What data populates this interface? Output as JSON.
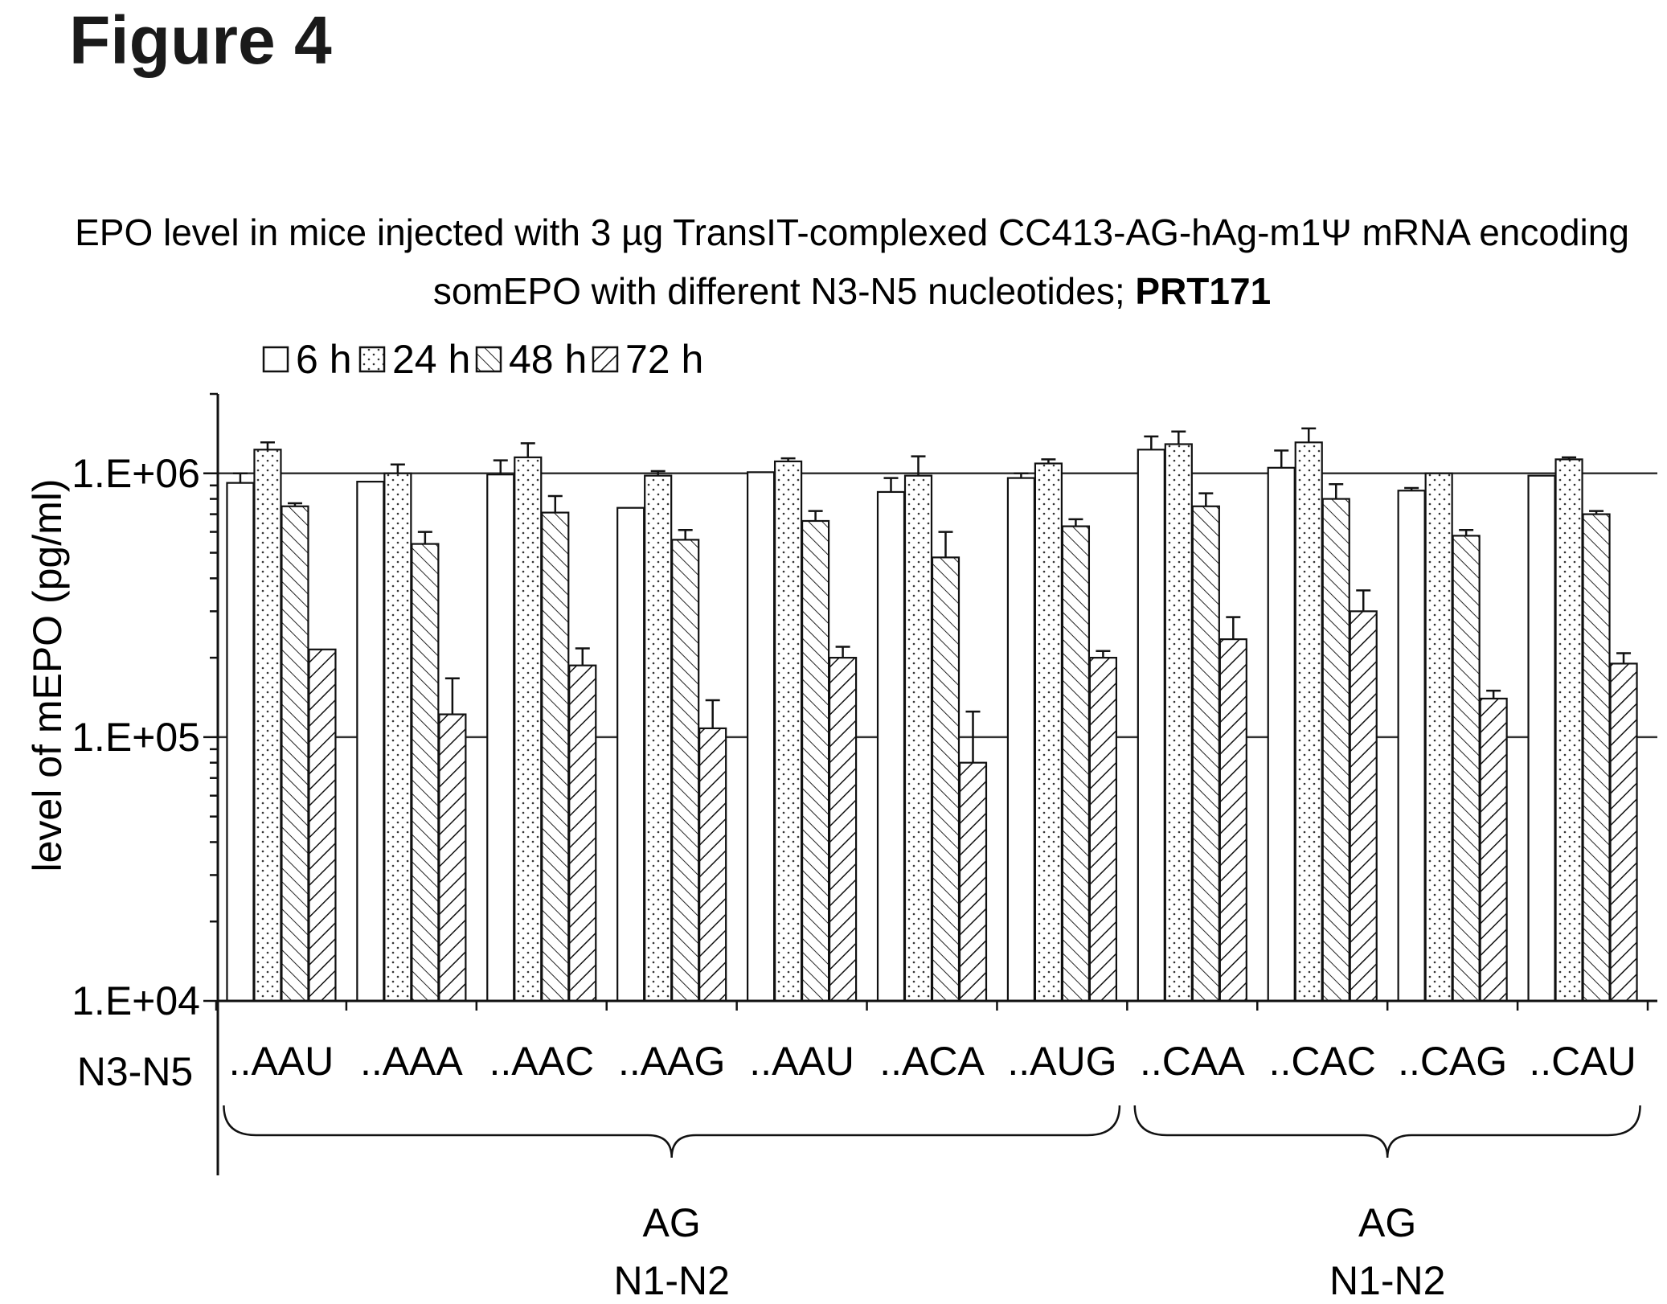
{
  "figure_label": "Figure 4",
  "chart_data": {
    "type": "bar",
    "title_line1": "EPO level in mice injected with 3 µg TransIT-complexed CC413-AG-hAg-m1Ψ mRNA encoding",
    "title_line2_prefix": "somEPO with different N3-N5 nucleotides; ",
    "title_line2_bold": "PRT171",
    "ylabel": "level of mEPO (pg/ml)",
    "row_label": "N3-N5",
    "yscale": "log",
    "ylim": [
      10000,
      2000000
    ],
    "yticks": [
      {
        "value": 10000,
        "label": "1.E+04"
      },
      {
        "value": 100000,
        "label": "1.E+05"
      },
      {
        "value": 1000000,
        "label": "1.E+06"
      }
    ],
    "gridlines": [
      100000,
      1000000
    ],
    "legend_placement": "top-left",
    "categories": [
      "..AAU",
      "..AAA",
      "..AAC",
      "..AAG",
      "..AAU",
      "..ACA",
      "..AUG",
      "..CAA",
      "..CAC",
      "..CAG",
      "..CAU"
    ],
    "series": [
      {
        "name": "6 h",
        "pattern": "open",
        "values": [
          920000,
          930000,
          990000,
          740000,
          1010000,
          850000,
          960000,
          1230000,
          1050000,
          860000,
          980000
        ],
        "errors": [
          80000,
          0,
          130000,
          0,
          0,
          110000,
          40000,
          150000,
          170000,
          20000,
          0
        ]
      },
      {
        "name": "24 h",
        "pattern": "dotted",
        "values": [
          1230000,
          1000000,
          1150000,
          980000,
          1110000,
          980000,
          1090000,
          1290000,
          1310000,
          1000000,
          1130000
        ],
        "errors": [
          80000,
          80000,
          150000,
          40000,
          30000,
          180000,
          40000,
          150000,
          170000,
          0,
          20000
        ]
      },
      {
        "name": "48 h",
        "pattern": "hatch-fine",
        "values": [
          750000,
          540000,
          710000,
          560000,
          660000,
          480000,
          630000,
          750000,
          800000,
          580000,
          700000
        ],
        "errors": [
          20000,
          60000,
          110000,
          50000,
          60000,
          120000,
          40000,
          90000,
          110000,
          30000,
          20000
        ]
      },
      {
        "name": "72 h",
        "pattern": "hatch-back",
        "values": [
          215000,
          122000,
          187000,
          108000,
          200000,
          80000,
          200000,
          235000,
          300000,
          140000,
          190000
        ],
        "errors": [
          0,
          45000,
          30000,
          30000,
          20000,
          45000,
          12000,
          50000,
          60000,
          10000,
          18000
        ]
      }
    ],
    "groups": [
      {
        "line1": "AG",
        "line2": "N1-N2",
        "from": 0,
        "to": 6
      },
      {
        "line1": "AG",
        "line2": "N1-N2",
        "from": 7,
        "to": 10
      }
    ]
  }
}
